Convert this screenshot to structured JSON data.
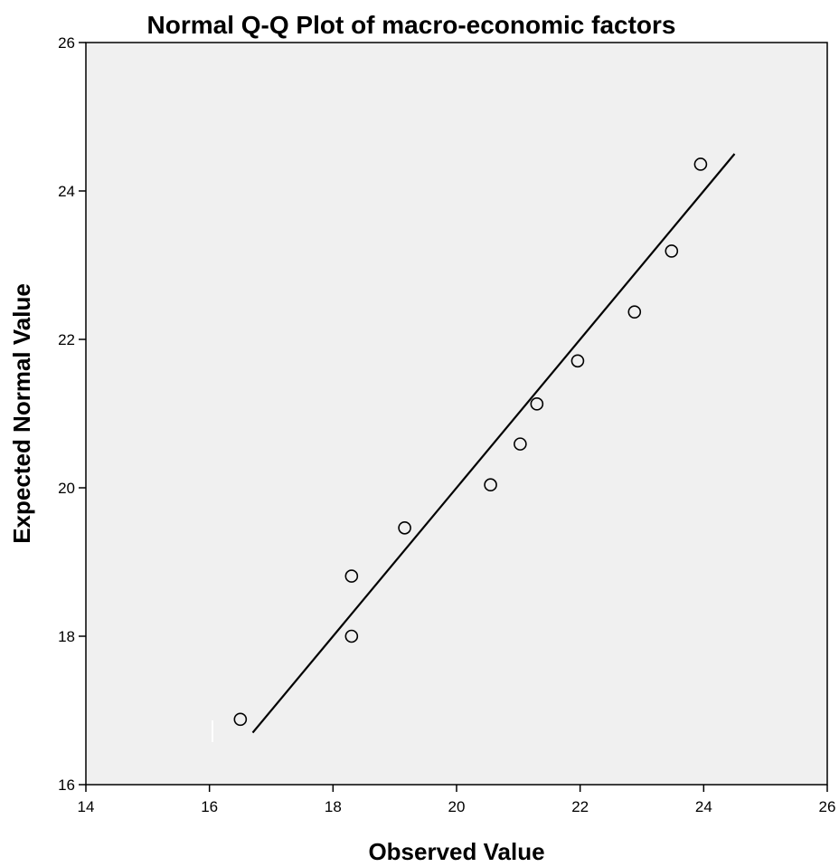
{
  "chart_data": {
    "type": "scatter",
    "title": "Normal Q-Q Plot of macro-economic factors",
    "xlabel": "Observed Value",
    "ylabel": "Expected Normal Value",
    "xlim": [
      14,
      26
    ],
    "ylim": [
      16,
      26
    ],
    "xticks": [
      "14",
      "16",
      "18",
      "20",
      "22",
      "24",
      "26"
    ],
    "yticks": [
      "16",
      "18",
      "20",
      "22",
      "24",
      "26"
    ],
    "grid": false,
    "plot_background": "#f0f0f0",
    "marker": "open-circle",
    "points": [
      {
        "x": 16.5,
        "y": 16.88
      },
      {
        "x": 18.3,
        "y": 18.0
      },
      {
        "x": 18.3,
        "y": 18.81
      },
      {
        "x": 19.16,
        "y": 19.46
      },
      {
        "x": 20.55,
        "y": 20.04
      },
      {
        "x": 21.03,
        "y": 20.59
      },
      {
        "x": 21.3,
        "y": 21.13
      },
      {
        "x": 21.96,
        "y": 21.71
      },
      {
        "x": 22.88,
        "y": 22.37
      },
      {
        "x": 23.48,
        "y": 23.19
      },
      {
        "x": 23.95,
        "y": 24.36
      }
    ],
    "reference_line": {
      "x": [
        16.7,
        24.5
      ],
      "y": [
        16.7,
        24.5
      ]
    }
  }
}
